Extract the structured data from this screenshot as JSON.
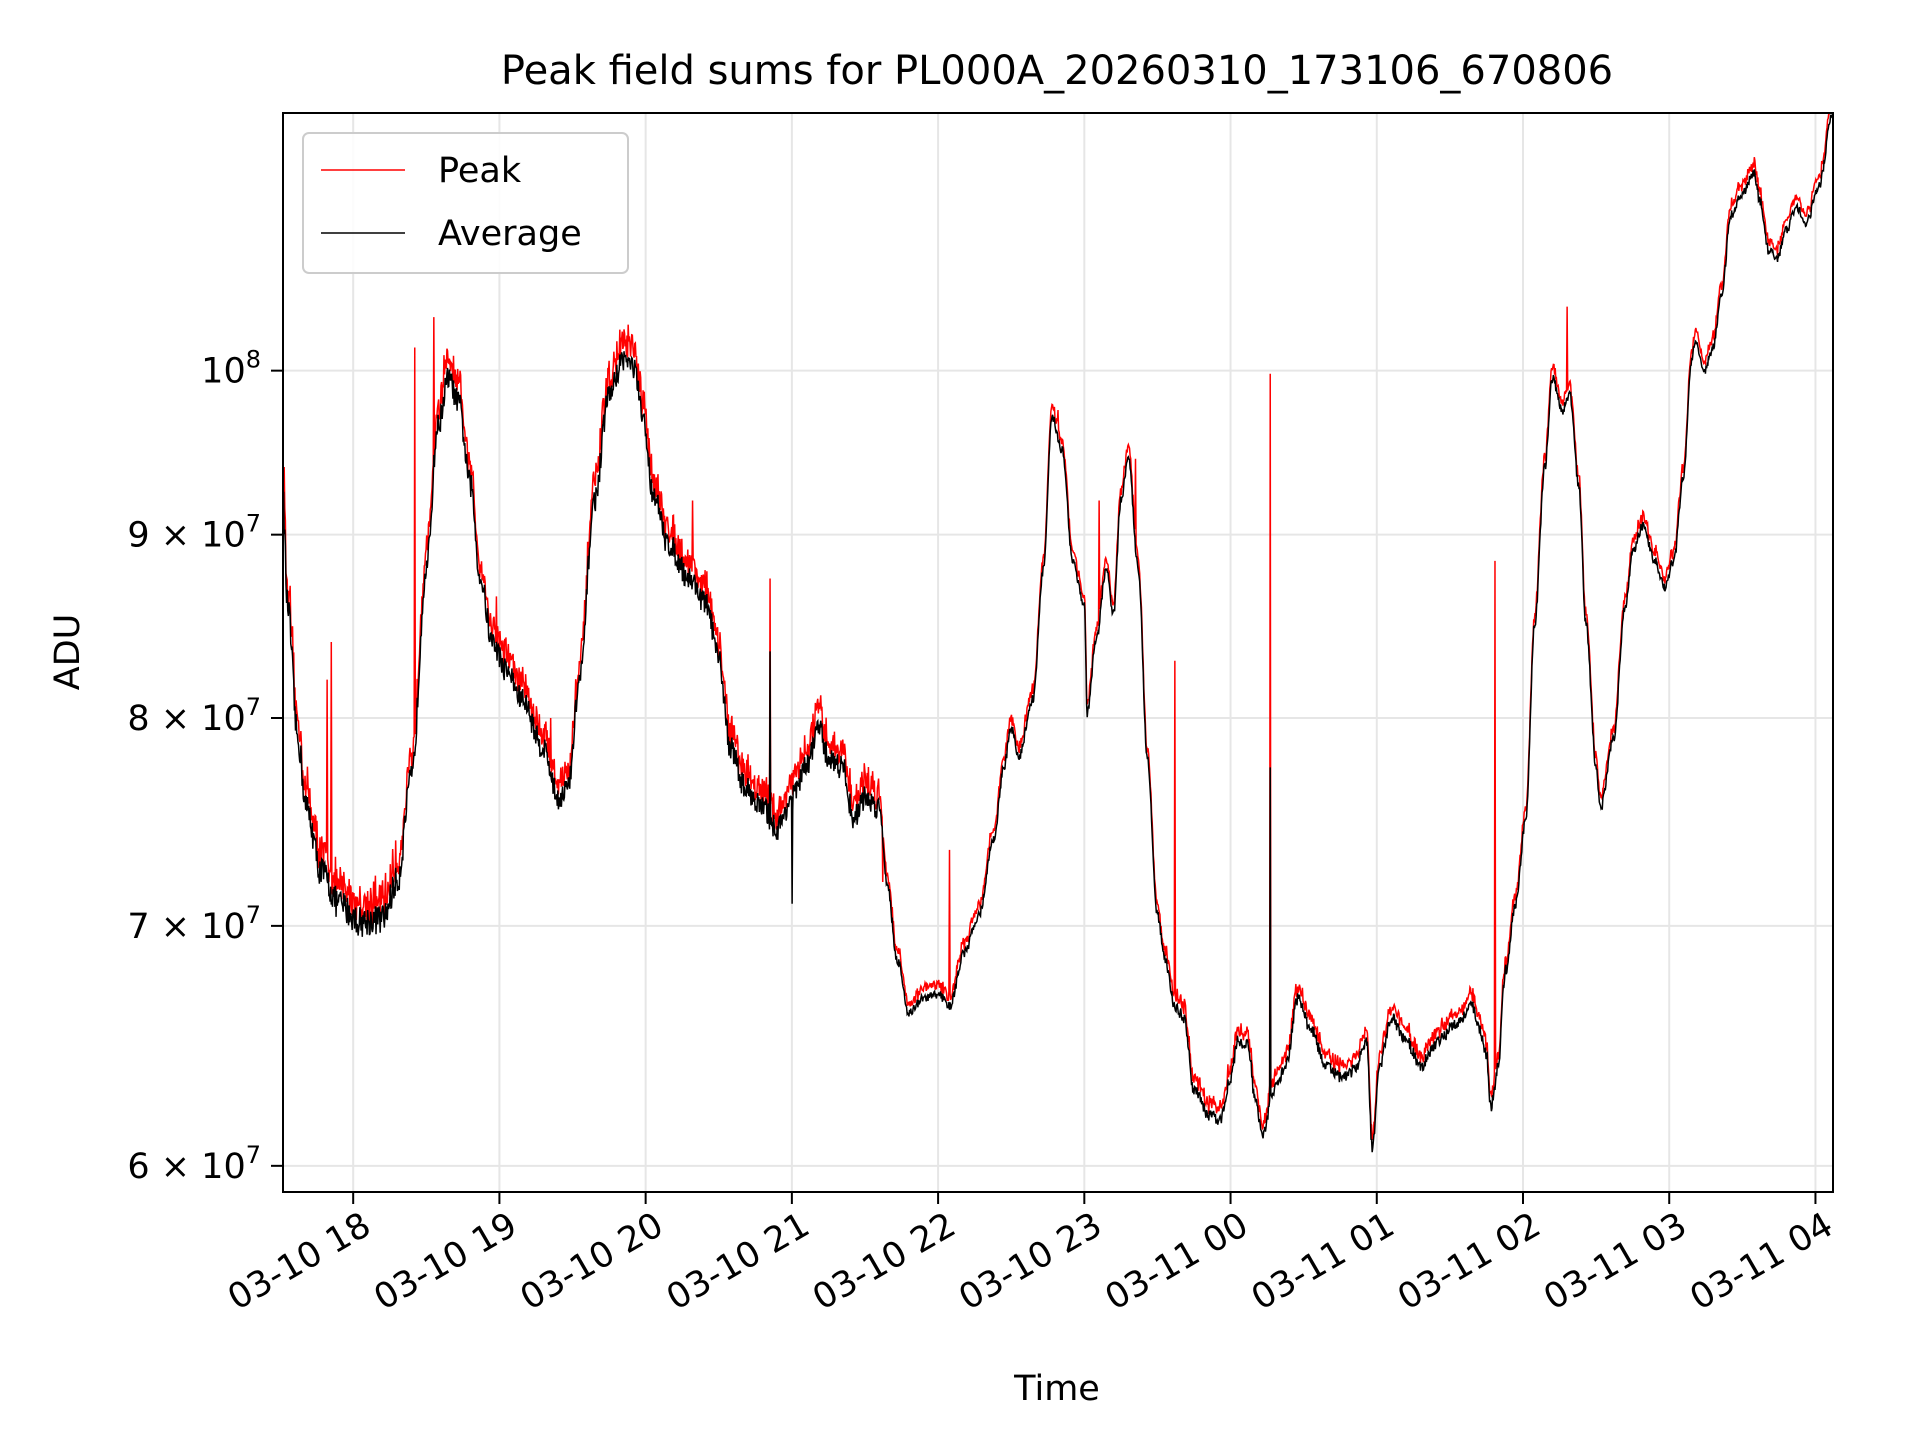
{
  "chart_data": {
    "type": "line",
    "title": "Peak field sums for PL000A_20260310_173106_670806",
    "xlabel": "Time",
    "ylabel": "ADU",
    "yscale": "log",
    "grid": true,
    "legend_position": "upper-left",
    "xlim_hours": [
      17.52,
      28.12
    ],
    "ylim": [
      59000000,
      118000000
    ],
    "x_ticks": [
      {
        "hour": 18,
        "label": "03-10 18"
      },
      {
        "hour": 19,
        "label": "03-10 19"
      },
      {
        "hour": 20,
        "label": "03-10 20"
      },
      {
        "hour": 21,
        "label": "03-10 21"
      },
      {
        "hour": 22,
        "label": "03-10 22"
      },
      {
        "hour": 23,
        "label": "03-10 23"
      },
      {
        "hour": 24,
        "label": "03-11 00"
      },
      {
        "hour": 25,
        "label": "03-11 01"
      },
      {
        "hour": 26,
        "label": "03-11 02"
      },
      {
        "hour": 27,
        "label": "03-11 03"
      },
      {
        "hour": 28,
        "label": "03-11 04"
      }
    ],
    "y_ticks": [
      {
        "value": 60000000,
        "mantissa": "6",
        "base": "10",
        "exp": "7"
      },
      {
        "value": 70000000,
        "mantissa": "7",
        "base": "10",
        "exp": "7"
      },
      {
        "value": 80000000,
        "mantissa": "8",
        "base": "10",
        "exp": "7"
      },
      {
        "value": 90000000,
        "mantissa": "9",
        "base": "10",
        "exp": "7"
      },
      {
        "value": 100000000,
        "mantissa": "",
        "base": "10",
        "exp": "8"
      }
    ],
    "series": [
      {
        "name": "Peak",
        "color": "#ff0000",
        "spikes": [
          {
            "h": 17.53,
            "v": 94000000
          },
          {
            "h": 17.82,
            "v": 82000000
          },
          {
            "h": 17.85,
            "v": 84000000
          },
          {
            "h": 18.42,
            "v": 101500000
          },
          {
            "h": 18.55,
            "v": 103500000
          },
          {
            "h": 18.62,
            "v": 101000000
          },
          {
            "h": 18.98,
            "v": 86500000
          },
          {
            "h": 19.35,
            "v": 80000000
          },
          {
            "h": 19.88,
            "v": 103000000
          },
          {
            "h": 20.32,
            "v": 92000000
          },
          {
            "h": 20.85,
            "v": 87500000
          },
          {
            "h": 21.62,
            "v": 72000000
          },
          {
            "h": 22.08,
            "v": 73500000
          },
          {
            "h": 22.82,
            "v": 97500000
          },
          {
            "h": 23.1,
            "v": 92000000
          },
          {
            "h": 23.35,
            "v": 94500000
          },
          {
            "h": 23.62,
            "v": 83000000
          },
          {
            "h": 24.27,
            "v": 99800000
          },
          {
            "h": 25.81,
            "v": 88500000
          },
          {
            "h": 26.3,
            "v": 104200000
          }
        ]
      },
      {
        "name": "Average",
        "color": "#000000",
        "points": [
          [
            17.52,
            92000000
          ],
          [
            17.55,
            86000000
          ],
          [
            17.62,
            79000000
          ],
          [
            17.68,
            75500000
          ],
          [
            17.78,
            72500000
          ],
          [
            17.9,
            71000000
          ],
          [
            18.05,
            70200000
          ],
          [
            18.2,
            70300000
          ],
          [
            18.3,
            72000000
          ],
          [
            18.4,
            77000000
          ],
          [
            18.5,
            88000000
          ],
          [
            18.58,
            96500000
          ],
          [
            18.65,
            99500000
          ],
          [
            18.72,
            98000000
          ],
          [
            18.8,
            93000000
          ],
          [
            18.87,
            87500000
          ],
          [
            18.95,
            84000000
          ],
          [
            19.05,
            82500000
          ],
          [
            19.15,
            81000000
          ],
          [
            19.3,
            78500000
          ],
          [
            19.4,
            76000000
          ],
          [
            19.47,
            76500000
          ],
          [
            19.55,
            82000000
          ],
          [
            19.65,
            92000000
          ],
          [
            19.75,
            98500000
          ],
          [
            19.85,
            100800000
          ],
          [
            19.92,
            100200000
          ],
          [
            19.98,
            97000000
          ],
          [
            20.05,
            92500000
          ],
          [
            20.15,
            89500000
          ],
          [
            20.3,
            87500000
          ],
          [
            20.42,
            86000000
          ],
          [
            20.5,
            83000000
          ],
          [
            20.58,
            78500000
          ],
          [
            20.68,
            76500000
          ],
          [
            20.8,
            75500000
          ],
          [
            20.9,
            74500000
          ],
          [
            21.0,
            76000000
          ],
          [
            21.1,
            77500000
          ],
          [
            21.18,
            79500000
          ],
          [
            21.25,
            78000000
          ],
          [
            21.35,
            77500000
          ],
          [
            21.42,
            75000000
          ],
          [
            21.5,
            76000000
          ],
          [
            21.6,
            75500000
          ],
          [
            21.65,
            72000000
          ],
          [
            21.72,
            68500000
          ],
          [
            21.8,
            66200000
          ],
          [
            21.9,
            66800000
          ],
          [
            22.0,
            67000000
          ],
          [
            22.08,
            66500000
          ],
          [
            22.18,
            68800000
          ],
          [
            22.28,
            70500000
          ],
          [
            22.38,
            74000000
          ],
          [
            22.45,
            77500000
          ],
          [
            22.5,
            79500000
          ],
          [
            22.55,
            78000000
          ],
          [
            22.65,
            81000000
          ],
          [
            22.72,
            88000000
          ],
          [
            22.78,
            97000000
          ],
          [
            22.85,
            95000000
          ],
          [
            22.92,
            88500000
          ],
          [
            23.0,
            86000000
          ],
          [
            23.02,
            80200000
          ],
          [
            23.08,
            84000000
          ],
          [
            23.15,
            88000000
          ],
          [
            23.2,
            85500000
          ],
          [
            23.25,
            92000000
          ],
          [
            23.3,
            94500000
          ],
          [
            23.37,
            88000000
          ],
          [
            23.43,
            78000000
          ],
          [
            23.5,
            70500000
          ],
          [
            23.55,
            68500000
          ],
          [
            23.62,
            66500000
          ],
          [
            23.68,
            66000000
          ],
          [
            23.75,
            63000000
          ],
          [
            23.85,
            62000000
          ],
          [
            23.93,
            61800000
          ],
          [
            24.0,
            63500000
          ],
          [
            24.05,
            65000000
          ],
          [
            24.12,
            64800000
          ],
          [
            24.17,
            62500000
          ],
          [
            24.22,
            61300000
          ],
          [
            24.3,
            63000000
          ],
          [
            24.38,
            64000000
          ],
          [
            24.46,
            66800000
          ],
          [
            24.55,
            65500000
          ],
          [
            24.65,
            64000000
          ],
          [
            24.75,
            63500000
          ],
          [
            24.85,
            63800000
          ],
          [
            24.93,
            65000000
          ],
          [
            24.97,
            60600000
          ],
          [
            25.02,
            64000000
          ],
          [
            25.1,
            66000000
          ],
          [
            25.2,
            65000000
          ],
          [
            25.3,
            64000000
          ],
          [
            25.42,
            65000000
          ],
          [
            25.55,
            65800000
          ],
          [
            25.65,
            66500000
          ],
          [
            25.7,
            65500000
          ],
          [
            25.75,
            64500000
          ],
          [
            25.78,
            62300000
          ],
          [
            25.83,
            64000000
          ],
          [
            25.88,
            68000000
          ],
          [
            25.95,
            71000000
          ],
          [
            26.02,
            75000000
          ],
          [
            26.08,
            85000000
          ],
          [
            26.15,
            94000000
          ],
          [
            26.2,
            99500000
          ],
          [
            26.27,
            97500000
          ],
          [
            26.32,
            98500000
          ],
          [
            26.38,
            93000000
          ],
          [
            26.43,
            85000000
          ],
          [
            26.5,
            77500000
          ],
          [
            26.53,
            75500000
          ],
          [
            26.62,
            79000000
          ],
          [
            26.7,
            86000000
          ],
          [
            26.75,
            89000000
          ],
          [
            26.82,
            90500000
          ],
          [
            26.9,
            88500000
          ],
          [
            26.97,
            87000000
          ],
          [
            27.03,
            88500000
          ],
          [
            27.1,
            93500000
          ],
          [
            27.15,
            100500000
          ],
          [
            27.18,
            102000000
          ],
          [
            27.24,
            100000000
          ],
          [
            27.3,
            101500000
          ],
          [
            27.36,
            105000000
          ],
          [
            27.42,
            110500000
          ],
          [
            27.5,
            112000000
          ],
          [
            27.58,
            113500000
          ],
          [
            27.62,
            111500000
          ],
          [
            27.68,
            108000000
          ],
          [
            27.74,
            107500000
          ],
          [
            27.8,
            109500000
          ],
          [
            27.87,
            111000000
          ],
          [
            27.94,
            110000000
          ],
          [
            28.02,
            112500000
          ],
          [
            28.12,
            118000000
          ]
        ]
      }
    ]
  }
}
